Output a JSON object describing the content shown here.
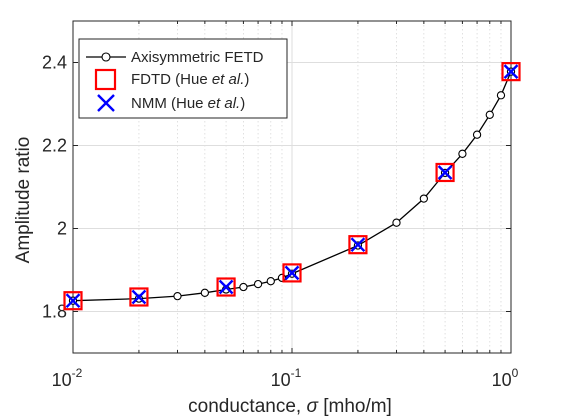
{
  "chart_data": {
    "type": "line",
    "xscale": "log",
    "xlim": [
      0.01,
      1
    ],
    "ylim": [
      1.7,
      2.5
    ],
    "grid": true,
    "legend_position": "top-left",
    "xlabel": {
      "prefix": "conductance, ",
      "symbol": "σ",
      "suffix": " [mho/m]"
    },
    "ylabel": "Amplitude ratio",
    "xticks": [
      {
        "value": 0.01,
        "base": "10",
        "exp": "-2"
      },
      {
        "value": 0.1,
        "base": "10",
        "exp": "-1"
      },
      {
        "value": 1,
        "base": "10",
        "exp": "0"
      }
    ],
    "yticks": [
      {
        "value": 1.8,
        "label": "1.8"
      },
      {
        "value": 2.0,
        "label": "2"
      },
      {
        "value": 2.2,
        "label": "2.2"
      },
      {
        "value": 2.4,
        "label": "2.4"
      }
    ],
    "series": [
      {
        "name": "Axisymmetric FETD",
        "marker": "circle-line",
        "color": "#000000",
        "x": [
          0.01,
          0.02,
          0.03,
          0.04,
          0.05,
          0.06,
          0.07,
          0.08,
          0.09,
          0.1,
          0.2,
          0.3,
          0.4,
          0.5,
          0.6,
          0.7,
          0.8,
          0.9,
          1.0
        ],
        "y": [
          1.826,
          1.831,
          1.837,
          1.845,
          1.853,
          1.859,
          1.866,
          1.873,
          1.881,
          1.891,
          1.959,
          2.014,
          2.072,
          2.134,
          2.18,
          2.226,
          2.274,
          2.321,
          2.378
        ]
      },
      {
        "name": "FDTD (Hue ",
        "name_italic": "et al.",
        "name_end": ")",
        "marker": "square",
        "color": "#ff0000",
        "x": [
          0.01,
          0.02,
          0.05,
          0.1,
          0.2,
          0.5,
          1.0
        ],
        "y": [
          1.826,
          1.835,
          1.859,
          1.893,
          1.961,
          2.135,
          2.378
        ]
      },
      {
        "name": "NMM (Hue ",
        "name_italic": "et al.",
        "name_end": ")",
        "marker": "x",
        "color": "#0000ff",
        "x": [
          0.01,
          0.02,
          0.05,
          0.1,
          0.2,
          0.5,
          1.0
        ],
        "y": [
          1.826,
          1.835,
          1.859,
          1.893,
          1.961,
          2.135,
          2.378
        ]
      }
    ]
  }
}
